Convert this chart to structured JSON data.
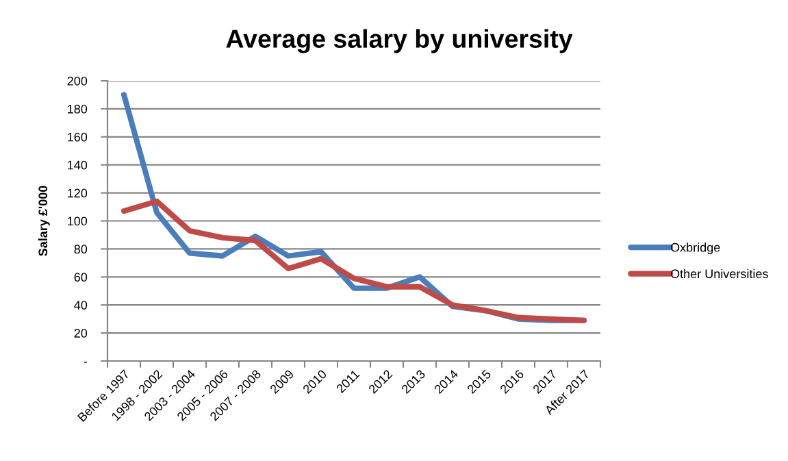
{
  "chart_data": {
    "type": "line",
    "title": "Average salary by university",
    "ylabel": "Salary £'000",
    "categories": [
      "Before 1997",
      "1998 - 2002",
      "2003 - 2004",
      "2005 - 2006",
      "2007 - 2008",
      "2009",
      "2010",
      "2011",
      "2012",
      "2013",
      "2014",
      "2015",
      "2016",
      "2017",
      "After 2017"
    ],
    "series": [
      {
        "name": "Oxbridge",
        "color": "#4a7ebb",
        "values": [
          190,
          106,
          77,
          75,
          89,
          75,
          78,
          52,
          52,
          60,
          39,
          36,
          30,
          29,
          29
        ]
      },
      {
        "name": "Other Universities",
        "color": "#be4b48",
        "values": [
          107,
          114,
          93,
          88,
          86,
          66,
          73,
          59,
          53,
          53,
          40,
          36,
          31,
          30,
          29
        ]
      }
    ],
    "ylim": [
      0,
      200
    ],
    "yticks": [
      {
        "value": 0,
        "label": "-"
      },
      20,
      40,
      60,
      80,
      100,
      120,
      140,
      160,
      180,
      200
    ],
    "grid": "y",
    "legend": "right"
  }
}
